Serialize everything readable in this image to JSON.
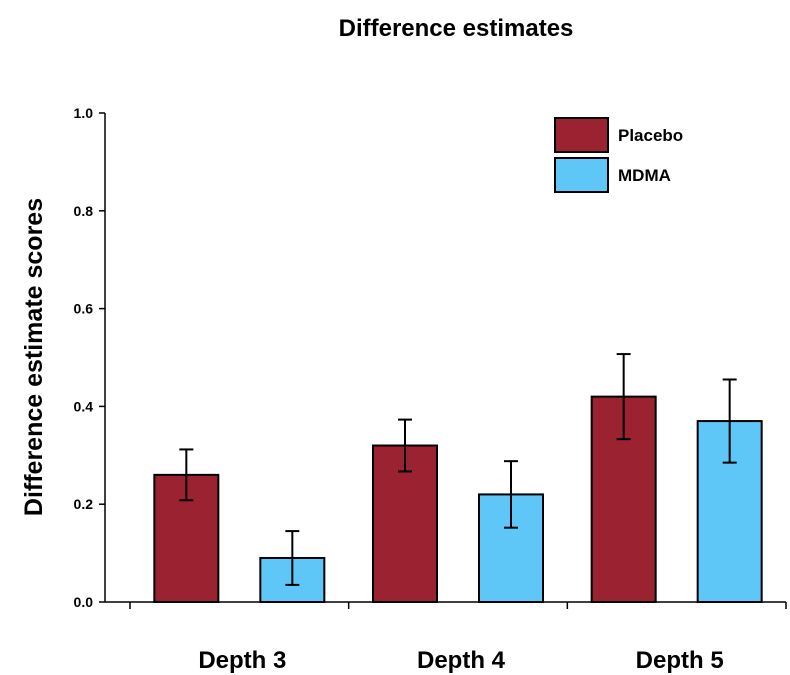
{
  "chart_data": {
    "type": "bar",
    "title": "Difference estimates",
    "xlabel": "",
    "ylabel": "Difference estimate scores",
    "categories": [
      "Depth 3",
      "Depth 4",
      "Depth 5"
    ],
    "ylim": [
      0.0,
      1.0
    ],
    "yticks": [
      "0.0",
      "0.2",
      "0.4",
      "0.6",
      "0.8",
      "1.0"
    ],
    "legend_position": "top-right",
    "grid": false,
    "series": [
      {
        "name": "Placebo",
        "color": "#9b2230",
        "values": [
          0.26,
          0.32,
          0.42
        ],
        "error": [
          0.052,
          0.053,
          0.087
        ]
      },
      {
        "name": "MDMA",
        "color": "#5fc7f7",
        "values": [
          0.09,
          0.22,
          0.37
        ],
        "error": [
          0.055,
          0.068,
          0.085
        ]
      }
    ]
  }
}
